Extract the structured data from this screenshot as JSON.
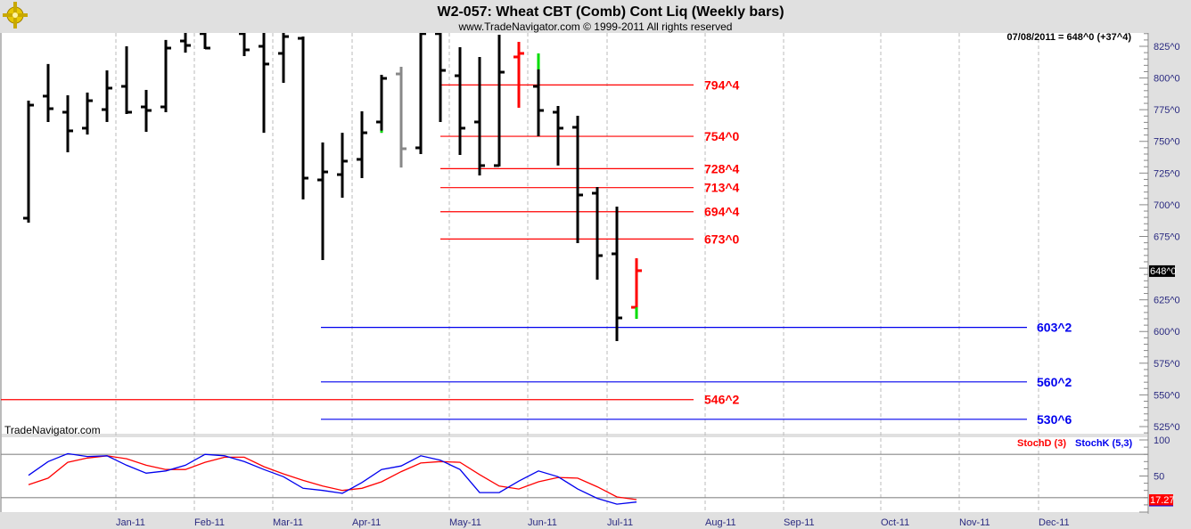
{
  "header": {
    "title": "W2-057:  Wheat CBT (Comb) Cont Liq  (Weekly bars)",
    "subtitle": "www.TradeNavigator.com © 1999-2011 All rights reserved",
    "readout": "07/08/2011 = 648^0 (+37^4)",
    "watermark": "TradeNavigator.com",
    "logo_icon": "ship-wheel-logo-icon"
  },
  "chart_data": [
    {
      "type": "ohlc",
      "title": "W2-057:  Wheat CBT (Comb) Cont Liq  (Weekly bars)",
      "ylim": [
        520,
        836
      ],
      "y_ticks": [
        "825^0",
        "800^0",
        "775^0",
        "750^0",
        "725^0",
        "700^0",
        "675^0",
        "648^0",
        "625^0",
        "600^0",
        "575^0",
        "550^0",
        "525^0"
      ],
      "y_tick_values": [
        825,
        800,
        775,
        750,
        725,
        700,
        675,
        648,
        625,
        600,
        575,
        550,
        525
      ],
      "last_price_label": "648^0",
      "x_ticks": [
        "Jan-11",
        "Feb-11",
        "Mar-11",
        "Apr-11",
        "May-11",
        "Jun-11",
        "Jul-11",
        "Aug-11",
        "Sep-11",
        "Oct-11",
        "Nov-11",
        "Dec-11"
      ],
      "grid": "vertical dashed at month starts",
      "colors": {
        "bar": "#000000",
        "up_accent": "#00dd00",
        "down": "#ff0000",
        "neutral": "#888888"
      },
      "bars": [
        {
          "o": 689.4,
          "h": 782.1,
          "l": 685.9,
          "c": 778.6
        },
        {
          "o": 785.7,
          "h": 811.0,
          "l": 765.3,
          "c": 775.8
        },
        {
          "o": 773.0,
          "h": 786.4,
          "l": 741.4,
          "c": 758.3
        },
        {
          "o": 760.4,
          "h": 788.5,
          "l": 755.4,
          "c": 782.1
        },
        {
          "o": 775.1,
          "h": 806.0,
          "l": 765.3,
          "c": 792.0
        },
        {
          "o": 793.4,
          "h": 825.0,
          "l": 771.6,
          "c": 773.0
        },
        {
          "o": 777.2,
          "h": 790.6,
          "l": 757.5,
          "c": 774.4
        },
        {
          "o": 777.2,
          "h": 830.0,
          "l": 773.0,
          "c": 823.6
        },
        {
          "o": 829.2,
          "h": 845.0,
          "l": 820.0,
          "c": 825.7
        },
        {
          "o": 835.0,
          "h": 845.0,
          "l": 822.9,
          "c": 823.6
        },
        null,
        {
          "o": 835.0,
          "h": 845.0,
          "l": 817.3,
          "c": 822.2
        },
        {
          "o": 825.0,
          "h": 845.0,
          "l": 756.8,
          "c": 811.0
        },
        {
          "o": 819.4,
          "h": 845.0,
          "l": 796.2,
          "c": 832.7
        },
        {
          "o": 831.3,
          "h": 832.7,
          "l": 704.2,
          "c": 721.0
        },
        {
          "o": 719.6,
          "h": 749.1,
          "l": 656.4,
          "c": 725.9
        },
        {
          "o": 723.8,
          "h": 756.8,
          "l": 705.6,
          "c": 734.4
        },
        {
          "o": 735.8,
          "h": 773.7,
          "l": 721.0,
          "c": 756.8
        },
        {
          "o": 765.3,
          "h": 802.5,
          "l": 756.8,
          "c": 799.7,
          "accent": {
            "from": 756.8,
            "to": 758.5,
            "color": "#00dd00"
          }
        },
        {
          "o": 803.2,
          "h": 808.8,
          "l": 729.4,
          "c": 744.2,
          "color": "#888888"
        },
        {
          "o": 744.9,
          "h": 845.0,
          "l": 740.0,
          "c": 835.0
        },
        {
          "o": 835.0,
          "h": 845.0,
          "l": 765.3,
          "c": 806.0
        },
        {
          "o": 801.8,
          "h": 824.3,
          "l": 739.3,
          "c": 760.4
        },
        {
          "o": 765.3,
          "h": 816.6,
          "l": 723.1,
          "c": 730.9
        },
        {
          "o": 730.9,
          "h": 834.1,
          "l": 730.2,
          "c": 804.6
        },
        {
          "o": 816.6,
          "h": 828.5,
          "l": 776.5,
          "c": 819.4,
          "color": "#ff0000"
        },
        {
          "o": 793.4,
          "h": 819.4,
          "l": 754.0,
          "c": 774.4,
          "accent": {
            "from": 806.8,
            "to": 819.4,
            "color": "#00dd00"
          }
        },
        {
          "o": 773.0,
          "h": 777.9,
          "l": 730.9,
          "c": 760.4
        },
        {
          "o": 761.1,
          "h": 770.2,
          "l": 669.7,
          "c": 707.7
        },
        {
          "o": 709.1,
          "h": 714.0,
          "l": 640.9,
          "c": 659.9
        },
        {
          "o": 661.3,
          "h": 698.5,
          "l": 592.4,
          "c": 610.7
        },
        {
          "o": 619.1,
          "h": 657.8,
          "l": 610.0,
          "c": 648.0,
          "color": "#ff0000",
          "accent": {
            "from": 610.0,
            "to": 619.1,
            "color": "#00dd00"
          }
        }
      ],
      "levels": [
        {
          "price": 794.5,
          "label": "794^4",
          "color": "#ff0000"
        },
        {
          "price": 754.0,
          "label": "754^0",
          "color": "#ff0000"
        },
        {
          "price": 728.5,
          "label": "728^4",
          "color": "#ff0000"
        },
        {
          "price": 713.5,
          "label": "713^4",
          "color": "#ff0000"
        },
        {
          "price": 694.5,
          "label": "694^4",
          "color": "#ff0000"
        },
        {
          "price": 673.0,
          "label": "673^0",
          "color": "#ff0000"
        },
        {
          "price": 546.25,
          "label": "546^2",
          "color": "#ff0000"
        },
        {
          "price": 603.25,
          "label": "603^2",
          "color": "#0000ee"
        },
        {
          "price": 560.25,
          "label": "560^2",
          "color": "#0000ee"
        },
        {
          "price": 530.75,
          "label": "530^6",
          "color": "#0000ee"
        }
      ]
    },
    {
      "type": "line",
      "ylim": [
        0,
        100
      ],
      "y_ticks": [
        "100",
        "50"
      ],
      "y_tick_values": [
        100,
        50
      ],
      "reference_lines": [
        80,
        20
      ],
      "last_value_label": "17.27",
      "series": [
        {
          "name": "StochD (3)",
          "color": "#ff0000",
          "values": [
            38,
            47,
            69,
            75,
            78,
            74,
            65,
            59,
            59,
            69,
            76,
            76,
            63,
            53,
            44,
            36,
            30,
            33,
            42,
            56,
            68,
            70,
            69,
            52,
            36,
            32,
            42,
            48,
            47,
            35,
            21,
            17.27
          ]
        },
        {
          "name": "StochK (5,3)",
          "color": "#0000ee",
          "values": [
            51,
            70,
            81,
            77,
            78,
            65,
            54,
            57,
            65,
            80,
            78,
            70,
            59,
            49,
            33,
            30,
            26,
            41,
            59,
            64,
            78,
            72,
            59,
            27,
            27,
            43,
            57,
            49,
            32,
            19,
            11,
            14
          ]
        }
      ]
    }
  ]
}
